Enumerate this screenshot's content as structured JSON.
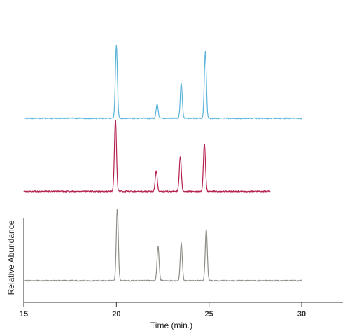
{
  "chart_data": {
    "type": "line",
    "title": "",
    "xlabel": "Time (min.)",
    "ylabel": "Relative Abundance",
    "xlim": [
      15,
      32
    ],
    "xticks": [
      15,
      20,
      25,
      30
    ],
    "grid": false,
    "legend": "none",
    "series": [
      {
        "color": "#5ab4da",
        "x_range": [
          15,
          30
        ],
        "baseline": 100,
        "peaks": [
          {
            "x": 20.0,
            "height": 100
          },
          {
            "x": 22.2,
            "height": 19
          },
          {
            "x": 23.5,
            "height": 48
          },
          {
            "x": 24.8,
            "height": 92
          }
        ]
      },
      {
        "color": "#b5204d",
        "x_range": [
          15,
          28.3
        ],
        "baseline": 55,
        "peaks": [
          {
            "x": 19.95,
            "height": 100
          },
          {
            "x": 22.15,
            "height": 28
          },
          {
            "x": 23.45,
            "height": 48
          },
          {
            "x": 24.75,
            "height": 66
          }
        ]
      },
      {
        "color": "#8f8f88",
        "x_range": [
          15,
          30
        ],
        "baseline": 0,
        "peaks": [
          {
            "x": 20.05,
            "height": 100
          },
          {
            "x": 22.25,
            "height": 47
          },
          {
            "x": 23.5,
            "height": 52
          },
          {
            "x": 24.85,
            "height": 71
          }
        ]
      }
    ]
  }
}
